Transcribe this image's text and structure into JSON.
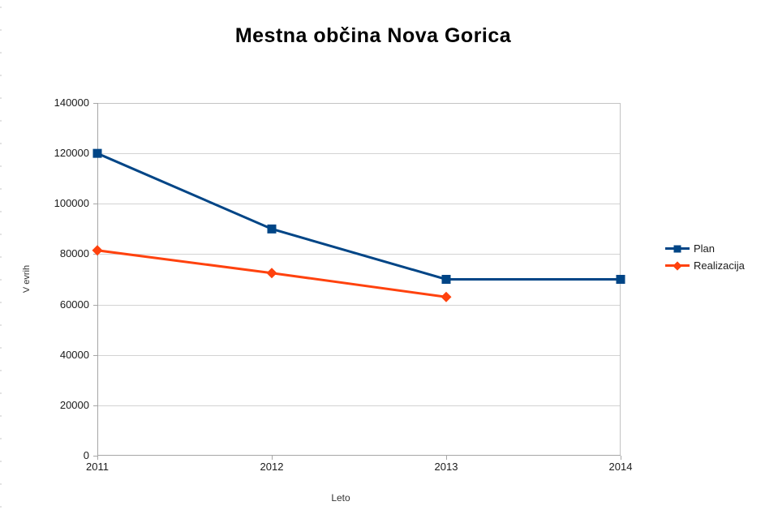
{
  "chart_data": {
    "type": "line",
    "title": "Mestna občina Nova Gorica",
    "xlabel": "Leto",
    "ylabel": "V evrih",
    "categories": [
      "2011",
      "2012",
      "2013",
      "2014"
    ],
    "series": [
      {
        "name": "Plan",
        "color": "#004586",
        "marker": "square",
        "values": [
          120000,
          90000,
          70000,
          70000
        ]
      },
      {
        "name": "Realizacija",
        "color": "#FF420E",
        "marker": "diamond",
        "values": [
          81500,
          72500,
          63000,
          null
        ]
      }
    ],
    "ylim": [
      0,
      140000
    ],
    "ytick_step": 20000,
    "ytick_labels": [
      "0",
      "20000",
      "40000",
      "60000",
      "80000",
      "100000",
      "120000",
      "140000"
    ],
    "grid": "horizontal",
    "legend_position": "right"
  },
  "colors": {
    "background": "#ffffff",
    "text": "#1a1a1a",
    "gridline": "#d3d3d3",
    "axis": "#a6a6a6",
    "plot_border": "#c3c3c3",
    "series_plan": "#004586",
    "series_realizacija": "#FF420E"
  }
}
